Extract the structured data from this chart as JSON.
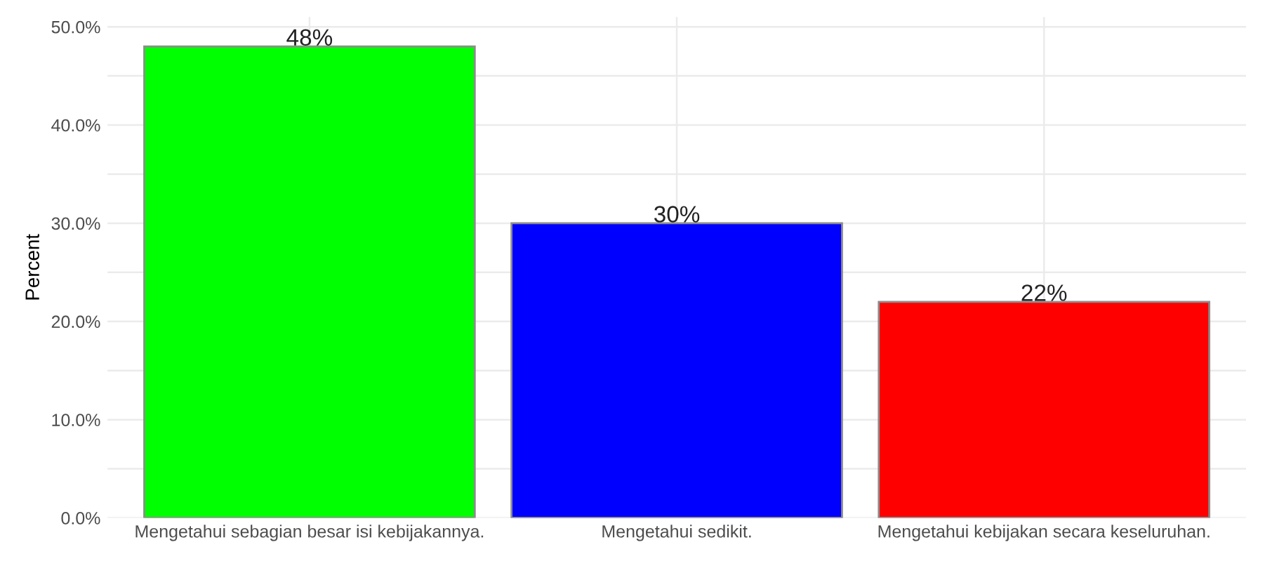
{
  "chart_data": {
    "type": "bar",
    "ylabel": "Percent",
    "categories": [
      "Mengetahui sebagian besar isi kebijakannya.",
      "Mengetahui sedikit.",
      "Mengetahui kebijakan secara keseluruhan."
    ],
    "values": [
      48,
      30,
      22
    ],
    "colors": [
      "#00ff00",
      "#0000ff",
      "#ff0000"
    ],
    "value_labels": [
      "48%",
      "30%",
      "22%"
    ],
    "ylim": [
      0,
      51
    ],
    "yticks": [
      {
        "value": 0,
        "label": "0.0%"
      },
      {
        "value": 5,
        "label": null
      },
      {
        "value": 10,
        "label": "10.0%"
      },
      {
        "value": 15,
        "label": null
      },
      {
        "value": 20,
        "label": "20.0%"
      },
      {
        "value": 25,
        "label": null
      },
      {
        "value": 30,
        "label": "30.0%"
      },
      {
        "value": 35,
        "label": null
      },
      {
        "value": 40,
        "label": "40.0%"
      },
      {
        "value": 45,
        "label": null
      },
      {
        "value": 50,
        "label": "50.0%"
      }
    ],
    "grid": true
  }
}
